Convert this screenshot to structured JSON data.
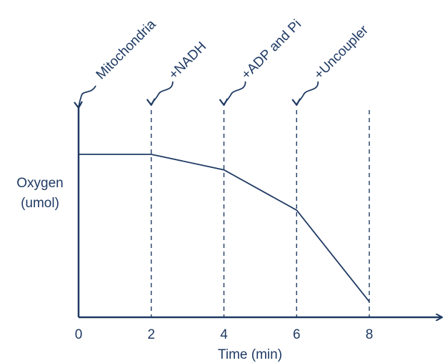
{
  "chart_data": {
    "type": "line",
    "xlabel": "Time (min)",
    "ylabel_line1": "Oxygen",
    "ylabel_line2": "(umol)",
    "x_ticks": [
      "0",
      "2",
      "4",
      "6",
      "8"
    ],
    "xlim": [
      0,
      8
    ],
    "ylim": [
      0,
      100
    ],
    "series": [
      {
        "x": [
          0,
          2,
          4,
          6,
          8
        ],
        "y": [
          100,
          100,
          90,
          64,
          5
        ]
      }
    ],
    "annotations": [
      {
        "label": "Mitochondria",
        "x": 0
      },
      {
        "label": "+NADH",
        "x": 2
      },
      {
        "label": "+ADP and Pi",
        "x": 4
      },
      {
        "label": "+Uncoupler",
        "x": 6
      }
    ],
    "dashed_lines_at": [
      2,
      4,
      6,
      8
    ],
    "grid": false,
    "legend": "none",
    "colors": {
      "line": "#1f3a63",
      "text": "#1f3a63"
    }
  }
}
